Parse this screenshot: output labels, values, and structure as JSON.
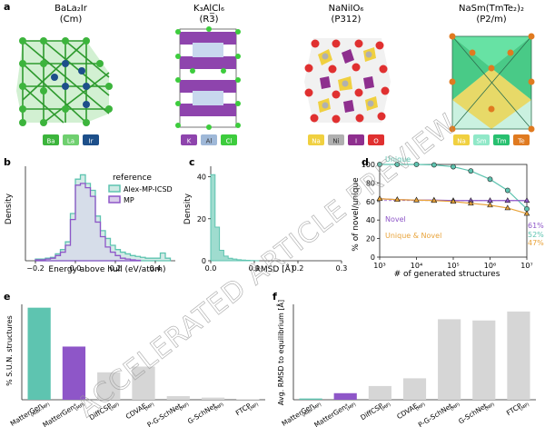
{
  "watermark": "ACCELERATED ARTICLE PREVIEW",
  "colors": {
    "teal": "#5ec4b0",
    "purple": "#8e56c8",
    "gold": "#e8a33a",
    "grey": "#d6d6d6",
    "green": "#3cb43c",
    "blue": "#3d6fa8"
  },
  "panel_a": {
    "letter": "a",
    "structures": [
      {
        "formula": "BaLa₂Ir",
        "group": "(Cm)",
        "legend": [
          {
            "label": "Ba",
            "color": "#3cb43c"
          },
          {
            "label": "La",
            "color": "#6fcf6f"
          },
          {
            "label": "Ir",
            "color": "#1d4f8a"
          }
        ]
      },
      {
        "formula": "K₃AlCl₆",
        "group": "(R3̅)",
        "legend": [
          {
            "label": "K",
            "color": "#8e44ad"
          },
          {
            "label": "Al",
            "color": "#9fb8d8"
          },
          {
            "label": "Cl",
            "color": "#3dcc3d"
          }
        ]
      },
      {
        "formula": "NaNiIO₆",
        "group": "(P312)",
        "legend": [
          {
            "label": "Na",
            "color": "#f0d040"
          },
          {
            "label": "Ni",
            "color": "#b0b0b0"
          },
          {
            "label": "I",
            "color": "#8e2f8e"
          },
          {
            "label": "O",
            "color": "#e03030"
          }
        ]
      },
      {
        "formula": "NaSm(TmTe₂)₂",
        "group": "(P2/m)",
        "legend": [
          {
            "label": "Na",
            "color": "#f0d040"
          },
          {
            "label": "Sm",
            "color": "#90e8c8"
          },
          {
            "label": "Tm",
            "color": "#28c070"
          },
          {
            "label": "Te",
            "color": "#e07a20"
          }
        ]
      }
    ]
  },
  "panel_b": {
    "letter": "b",
    "chart_data": {
      "type": "histogram",
      "xlabel": "Energy above hull (eV/atom)",
      "ylabel": "Density",
      "xlim": [
        -0.25,
        0.5
      ],
      "xticks": [
        "−0.2",
        "0.0",
        "0.2",
        "0.4"
      ],
      "legend_title": "reference",
      "series": [
        {
          "name": "Alex-MP-ICSD",
          "bins": [
            -0.2,
            -0.175,
            -0.15,
            -0.125,
            -0.1,
            -0.075,
            -0.05,
            -0.025,
            0,
            0.025,
            0.05,
            0.075,
            0.1,
            0.125,
            0.15,
            0.175,
            0.2,
            0.225,
            0.25,
            0.275,
            0.3,
            0.325,
            0.35,
            0.375,
            0.4,
            0.425,
            0.45
          ],
          "density": [
            0.2,
            0.2,
            0.3,
            0.4,
            0.8,
            1.3,
            2.2,
            5.5,
            9.5,
            10,
            9,
            8.2,
            5.2,
            3.5,
            2.6,
            1.8,
            1.3,
            1,
            0.8,
            0.6,
            0.5,
            0.4,
            0.3,
            0.3,
            0.3,
            0.9,
            0.3
          ]
        },
        {
          "name": "MP",
          "bins": [
            -0.2,
            -0.175,
            -0.15,
            -0.125,
            -0.1,
            -0.075,
            -0.05,
            -0.025,
            0,
            0.025,
            0.05,
            0.075,
            0.1,
            0.125,
            0.15,
            0.175,
            0.2,
            0.225,
            0.25,
            0.275,
            0.3
          ],
          "density": [
            0.1,
            0.1,
            0.2,
            0.3,
            0.6,
            1,
            1.8,
            4.8,
            8.8,
            9,
            8.5,
            7.5,
            4.5,
            2.8,
            1.6,
            1.0,
            0.6,
            0.3,
            0.2,
            0.1,
            0.05
          ]
        }
      ]
    }
  },
  "panel_c": {
    "letter": "c",
    "chart_data": {
      "type": "histogram",
      "xlabel": "RMSD [Å]",
      "ylabel": "Density",
      "xlim": [
        0,
        0.3
      ],
      "ylim": [
        0,
        45
      ],
      "xticks": [
        "0.0",
        "0.1",
        "0.2",
        "0.3"
      ],
      "yticks": [
        "0",
        "20",
        "40"
      ],
      "bins": [
        0,
        0.01,
        0.02,
        0.03,
        0.04,
        0.05,
        0.06,
        0.07,
        0.08,
        0.09,
        0.1
      ],
      "density": [
        41,
        16,
        5,
        2.2,
        1.2,
        0.8,
        0.5,
        0.3,
        0.2,
        0.1,
        0.05
      ]
    }
  },
  "panel_d": {
    "letter": "d",
    "chart_data": {
      "type": "line",
      "xlabel": "# of generated structures",
      "ylabel": "% of novel/unique",
      "xlog": [
        3,
        7
      ],
      "ylim": [
        0,
        100
      ],
      "yticks": [
        "0",
        "20",
        "40",
        "60",
        "80",
        "100"
      ],
      "series": [
        {
          "name": "Unique",
          "x": [
            1000,
            3000,
            10000,
            30000,
            100000,
            300000,
            1000000,
            3000000,
            10000000
          ],
          "y": [
            100,
            100,
            100,
            99.5,
            97.5,
            93,
            84,
            72,
            52
          ]
        },
        {
          "name": "Novel",
          "x": [
            1000,
            3000,
            10000,
            30000,
            100000,
            300000,
            1000000,
            3000000,
            10000000
          ],
          "y": [
            63,
            62,
            61.5,
            61.5,
            61,
            61,
            61,
            61,
            61
          ]
        },
        {
          "name": "Unique & Novel",
          "x": [
            1000,
            3000,
            10000,
            30000,
            100000,
            300000,
            1000000,
            3000000,
            10000000
          ],
          "y": [
            63,
            62,
            61.5,
            61,
            60,
            58,
            56,
            53,
            47
          ]
        }
      ],
      "end_labels": [
        "61%",
        "52%",
        "47%"
      ]
    }
  },
  "panel_e": {
    "letter": "e",
    "chart_data": {
      "type": "bar",
      "ylabel": "% S.U.N. structures",
      "ylim": [
        0,
        40
      ],
      "categories": [
        {
          "name": "MatterGen",
          "sub": "(Alex-MP)"
        },
        {
          "name": "MatterGenᵃ",
          "sub": "(MP)"
        },
        {
          "name": "DiffCSP",
          "sub": "(MP)"
        },
        {
          "name": "CDVAE",
          "sub": "(MP)"
        },
        {
          "name": "P-G-SchNet",
          "sub": "(MP)"
        },
        {
          "name": "G-SchNet",
          "sub": "(MP)"
        },
        {
          "name": "FTCP",
          "sub": "(MP)"
        }
      ],
      "values": [
        38.6,
        22.3,
        11.5,
        13.9,
        1.5,
        0.9,
        0.2
      ],
      "bar_colors": [
        "#5ec4b0",
        "#8e56c8",
        "#d6d6d6",
        "#d6d6d6",
        "#d6d6d6",
        "#d6d6d6",
        "#d6d6d6"
      ]
    }
  },
  "panel_f": {
    "letter": "f",
    "chart_data": {
      "type": "bar",
      "ylabel": "Avg. RMSD to equilibrium [Å]",
      "ylim": [
        0,
        1.6
      ],
      "categories": [
        {
          "name": "MatterGen",
          "sub": "(Alex-MP)"
        },
        {
          "name": "MatterGenᵃ",
          "sub": "(MP)"
        },
        {
          "name": "DiffCSP",
          "sub": "(MP)"
        },
        {
          "name": "CDVAE",
          "sub": "(MP)"
        },
        {
          "name": "P-G-SchNet",
          "sub": "(MP)"
        },
        {
          "name": "G-SchNet",
          "sub": "(MP)"
        },
        {
          "name": "FTCP",
          "sub": "(MP)"
        }
      ],
      "values": [
        0.021,
        0.11,
        0.23,
        0.36,
        1.35,
        1.33,
        1.48
      ],
      "bar_colors": [
        "#5ec4b0",
        "#8e56c8",
        "#d6d6d6",
        "#d6d6d6",
        "#d6d6d6",
        "#d6d6d6",
        "#d6d6d6"
      ]
    }
  }
}
